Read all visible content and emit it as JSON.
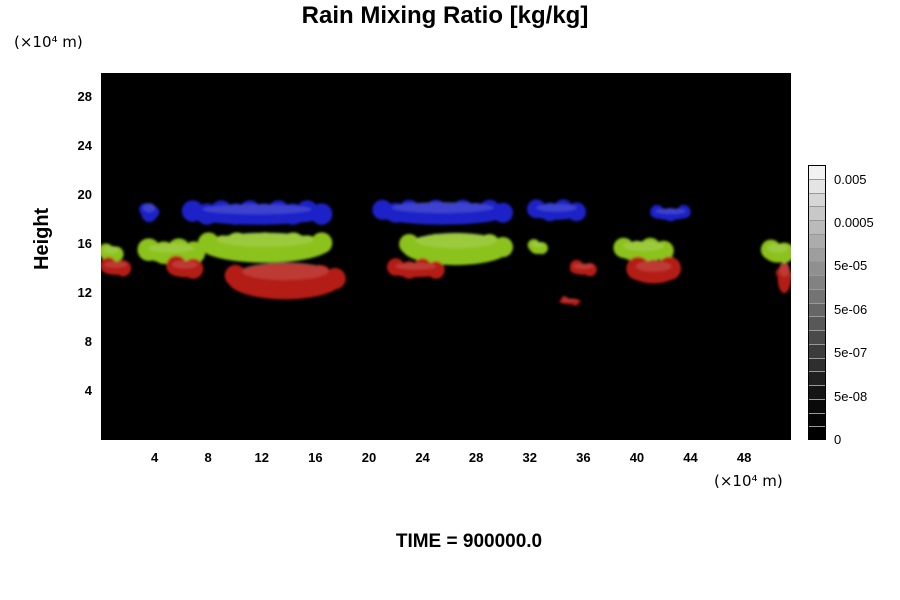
{
  "chart_data": {
    "type": "heatmap",
    "title": "Rain Mixing Ratio [kg/kg]",
    "ylabel": "Height",
    "y_unit": "(×10⁴ m)",
    "x_unit": "(×10⁴ m)",
    "xlim": [
      0,
      51.5
    ],
    "ylim": [
      0,
      30
    ],
    "x_ticks": [
      "4",
      "8",
      "12",
      "16",
      "20",
      "24",
      "28",
      "32",
      "36",
      "40",
      "44",
      "48"
    ],
    "y_ticks": [
      "4",
      "8",
      "12",
      "16",
      "20",
      "24",
      "28"
    ],
    "colorbar": {
      "labels": [
        "0.005",
        "0.0005",
        "5e-05",
        "5e-06",
        "5e-07",
        "5e-08",
        "0"
      ],
      "colors": [
        "#f2f2f2",
        "#e4e4e4",
        "#d6d6d6",
        "#c8c8c8",
        "#bababa",
        "#acacac",
        "#9e9e9e",
        "#909090",
        "#828282",
        "#747474",
        "#666666",
        "#585858",
        "#4a4a4a",
        "#3c3c3c",
        "#2e2e2e",
        "#202020",
        "#141414",
        "#0a0a0a",
        "#050505",
        "#000000"
      ]
    },
    "background_color": "#000000",
    "layer_colors": {
      "upper": "#1d23c8",
      "middle": "#8cc21c",
      "lower": "#b41a14"
    },
    "features": [
      {
        "layer": "upper",
        "x": [
          3.0,
          4.2
        ],
        "y": [
          17.8,
          19.5
        ]
      },
      {
        "layer": "upper",
        "x": [
          6.3,
          17.0
        ],
        "y": [
          17.6,
          19.4
        ]
      },
      {
        "layer": "upper",
        "x": [
          20.5,
          30.5
        ],
        "y": [
          17.6,
          19.6
        ]
      },
      {
        "layer": "upper",
        "x": [
          32.0,
          36.0
        ],
        "y": [
          18.0,
          19.4
        ]
      },
      {
        "layer": "upper",
        "x": [
          41.0,
          44.0
        ],
        "y": [
          18.0,
          19.0
        ]
      },
      {
        "layer": "middle",
        "x": [
          0.0,
          1.5
        ],
        "y": [
          14.5,
          16.0
        ]
      },
      {
        "layer": "middle",
        "x": [
          3.0,
          7.5
        ],
        "y": [
          14.5,
          16.2
        ]
      },
      {
        "layer": "middle",
        "x": [
          7.5,
          17.0
        ],
        "y": [
          14.5,
          17.2
        ]
      },
      {
        "layer": "middle",
        "x": [
          22.5,
          30.5
        ],
        "y": [
          14.3,
          17.2
        ]
      },
      {
        "layer": "middle",
        "x": [
          32.0,
          33.2
        ],
        "y": [
          15.2,
          16.3
        ]
      },
      {
        "layer": "middle",
        "x": [
          38.5,
          42.5
        ],
        "y": [
          14.6,
          16.4
        ]
      },
      {
        "layer": "middle",
        "x": [
          49.5,
          51.5
        ],
        "y": [
          14.5,
          16.2
        ]
      },
      {
        "layer": "lower",
        "x": [
          0.0,
          2.2
        ],
        "y": [
          13.5,
          14.7
        ]
      },
      {
        "layer": "lower",
        "x": [
          5.0,
          7.5
        ],
        "y": [
          13.3,
          14.8
        ]
      },
      {
        "layer": "lower",
        "x": [
          9.5,
          18.0
        ],
        "y": [
          11.5,
          14.8
        ]
      },
      {
        "layer": "lower",
        "x": [
          21.5,
          25.5
        ],
        "y": [
          13.3,
          14.6
        ]
      },
      {
        "layer": "lower",
        "x": [
          34.2,
          35.8
        ],
        "y": [
          11.1,
          11.6
        ]
      },
      {
        "layer": "lower",
        "x": [
          35.0,
          37.0
        ],
        "y": [
          13.5,
          14.5
        ]
      },
      {
        "layer": "lower",
        "x": [
          39.5,
          43.0
        ],
        "y": [
          12.8,
          14.8
        ]
      },
      {
        "layer": "lower",
        "x": [
          50.5,
          51.5
        ],
        "y": [
          12.0,
          14.8
        ]
      }
    ]
  },
  "footer": "TIME = 900000.0"
}
